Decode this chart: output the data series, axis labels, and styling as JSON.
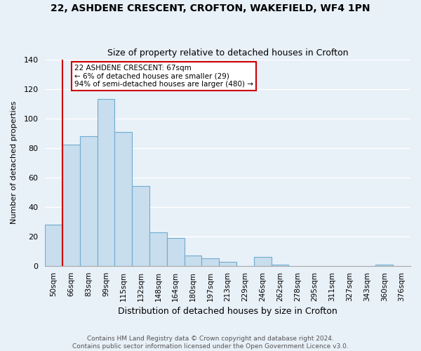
{
  "title1": "22, ASHDENE CRESCENT, CROFTON, WAKEFIELD, WF4 1PN",
  "title2": "Size of property relative to detached houses in Crofton",
  "xlabel": "Distribution of detached houses by size in Crofton",
  "ylabel": "Number of detached properties",
  "bar_labels": [
    "50sqm",
    "66sqm",
    "83sqm",
    "99sqm",
    "115sqm",
    "132sqm",
    "148sqm",
    "164sqm",
    "180sqm",
    "197sqm",
    "213sqm",
    "229sqm",
    "246sqm",
    "262sqm",
    "278sqm",
    "295sqm",
    "311sqm",
    "327sqm",
    "343sqm",
    "360sqm",
    "376sqm"
  ],
  "bar_values": [
    28,
    82,
    88,
    113,
    91,
    54,
    23,
    19,
    7,
    5,
    3,
    0,
    6,
    1,
    0,
    0,
    0,
    0,
    0,
    1,
    0
  ],
  "bar_color": "#c8dded",
  "bar_edge_color": "#6facd0",
  "vline_color": "#cc0000",
  "annotation_title": "22 ASHDENE CRESCENT: 67sqm",
  "annotation_line1": "← 6% of detached houses are smaller (29)",
  "annotation_line2": "94% of semi-detached houses are larger (480) →",
  "annotation_box_color": "#ffffff",
  "annotation_box_edge": "#cc0000",
  "ylim": [
    0,
    140
  ],
  "yticks": [
    0,
    20,
    40,
    60,
    80,
    100,
    120,
    140
  ],
  "bg_color": "#e8f0f8",
  "grid_color": "#ffffff",
  "footer1": "Contains HM Land Registry data © Crown copyright and database right 2024.",
  "footer2": "Contains public sector information licensed under the Open Government Licence v3.0."
}
